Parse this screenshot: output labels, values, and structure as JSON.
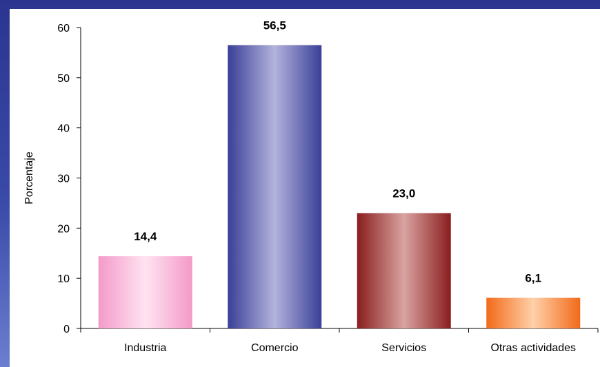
{
  "chart_data": {
    "type": "bar",
    "categories": [
      "Industria",
      "Comercio",
      "Servicios",
      "Otras actividades"
    ],
    "values": [
      14.4,
      56.5,
      23.0,
      6.1
    ],
    "value_labels": [
      "14,4",
      "56,5",
      "23,0",
      "6,1"
    ],
    "ylabel": "Porcentaje",
    "ylim": [
      0,
      60
    ],
    "yticks": [
      0,
      10,
      20,
      30,
      40,
      50,
      60
    ],
    "grid": false,
    "colors": [
      "#f49ac9",
      "#3a3f98",
      "#8a1e1e",
      "#f26a1b"
    ],
    "highlights": [
      "#ffe3f1",
      "#b3b3dc",
      "#d9a3a0",
      "#ffd0a8"
    ]
  }
}
